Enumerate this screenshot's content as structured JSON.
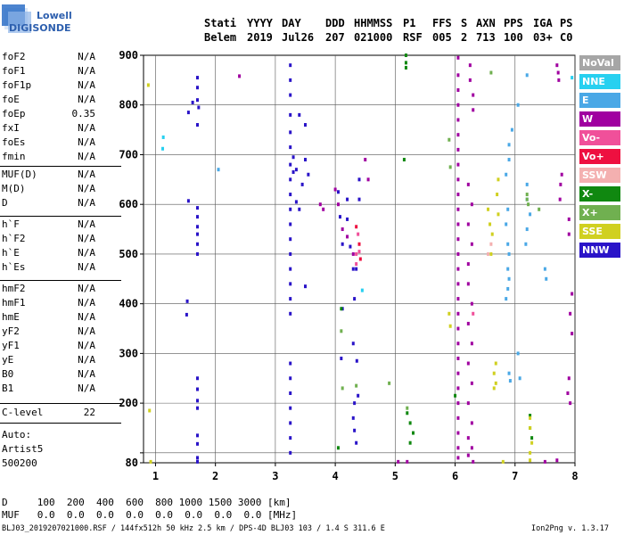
{
  "logo": {
    "line1": "Lowell",
    "line2": "DIGISONDE"
  },
  "header": {
    "columns": [
      "Stati",
      "YYYY",
      "DAY",
      "DDD",
      "HHMMSS",
      "P1",
      "FFS",
      "S",
      "AXN",
      "PPS",
      "IGA",
      "PS"
    ],
    "values": [
      "Belem",
      "2019",
      "Jul26",
      "207",
      "021000",
      "RSF",
      "005",
      "2",
      "713",
      "100",
      "03+",
      "C0"
    ]
  },
  "params": {
    "group1": [
      {
        "name": "foF2",
        "value": "N/A"
      },
      {
        "name": "foF1",
        "value": "N/A"
      },
      {
        "name": "foF1p",
        "value": "N/A"
      },
      {
        "name": "foE",
        "value": "N/A"
      },
      {
        "name": "foEp",
        "value": "0.35"
      },
      {
        "name": "fxI",
        "value": "N/A"
      },
      {
        "name": "foEs",
        "value": "N/A"
      },
      {
        "name": "fmin",
        "value": "N/A"
      }
    ],
    "group2": [
      {
        "name": "MUF(D)",
        "value": "N/A"
      },
      {
        "name": "M(D)",
        "value": "N/A"
      },
      {
        "name": "D",
        "value": "N/A"
      }
    ],
    "group3": [
      {
        "name": "h`F",
        "value": "N/A"
      },
      {
        "name": "h`F2",
        "value": "N/A"
      },
      {
        "name": "h`E",
        "value": "N/A"
      },
      {
        "name": "h`Es",
        "value": "N/A"
      }
    ],
    "group4": [
      {
        "name": "hmF2",
        "value": "N/A"
      },
      {
        "name": "hmF1",
        "value": "N/A"
      },
      {
        "name": "hmE",
        "value": "N/A"
      },
      {
        "name": "yF2",
        "value": "N/A"
      },
      {
        "name": "yF1",
        "value": "N/A"
      },
      {
        "name": "yE",
        "value": "N/A"
      },
      {
        "name": "B0",
        "value": "N/A"
      },
      {
        "name": "B1",
        "value": "N/A"
      }
    ],
    "clevel": {
      "name": "C-level",
      "value": "22"
    },
    "auto": {
      "l1": "Auto:",
      "l2": "Artist5",
      "l3": "500200"
    }
  },
  "legend": [
    {
      "label": "NoVal",
      "color": "#a6a6a6"
    },
    {
      "label": "NNE",
      "color": "#27d0f0"
    },
    {
      "label": "E",
      "color": "#4aa8e6"
    },
    {
      "label": "W",
      "color": "#a000a0"
    },
    {
      "label": "Vo-",
      "color": "#f0509a"
    },
    {
      "label": "Vo+",
      "color": "#ee1040"
    },
    {
      "label": "SSW",
      "color": "#f4b0b0"
    },
    {
      "label": "X-",
      "color": "#108810"
    },
    {
      "label": "X+",
      "color": "#70b050"
    },
    {
      "label": "SSE",
      "color": "#d0d020"
    },
    {
      "label": "NNW",
      "color": "#2a14c8"
    }
  ],
  "bottom": {
    "d_row": "D     100  200  400  600  800 1000 1500 3000 [km]",
    "muf_row": "MUF   0.0  0.0  0.0  0.0  0.0  0.0  0.0  0.0 [MHz]",
    "footer_left": "BLJ03_2019207021000.RSF / 144fx512h 50 kHz 2.5 km / DPS-4D BLJ03 103 / 1.4 S 311.6 E",
    "footer_right": "Ion2Png v. 1.3.17"
  },
  "chart_data": {
    "type": "scatter",
    "title": "",
    "xlabel": "",
    "ylabel": "",
    "xlim": [
      0.8,
      8.0
    ],
    "ylim": [
      80,
      900
    ],
    "x_ticks": [
      1,
      2,
      3,
      4,
      5,
      6,
      7,
      8
    ],
    "y_ticks": [
      80,
      100,
      200,
      300,
      400,
      500,
      600,
      700,
      800,
      900
    ],
    "y_tick_labels": [
      "80",
      "",
      "200",
      "300",
      "400",
      "500",
      "600",
      "700",
      "800",
      "900"
    ],
    "grid": true,
    "legend_position": "right",
    "series": [
      {
        "name": "NNW",
        "color": "#2a14c8",
        "points": [
          [
            1.7,
            835
          ],
          [
            1.7,
            855
          ],
          [
            1.72,
            795
          ],
          [
            1.7,
            810
          ],
          [
            1.7,
            760
          ],
          [
            1.55,
            785
          ],
          [
            1.62,
            805
          ],
          [
            1.55,
            607
          ],
          [
            1.7,
            593
          ],
          [
            1.7,
            575
          ],
          [
            1.7,
            555
          ],
          [
            1.7,
            540
          ],
          [
            1.7,
            520
          ],
          [
            1.7,
            500
          ],
          [
            1.53,
            405
          ],
          [
            1.52,
            378
          ],
          [
            1.7,
            250
          ],
          [
            1.7,
            228
          ],
          [
            1.7,
            205
          ],
          [
            1.7,
            190
          ],
          [
            1.7,
            135
          ],
          [
            1.7,
            118
          ],
          [
            1.7,
            90
          ],
          [
            1.7,
            82
          ],
          [
            3.25,
            880
          ],
          [
            3.25,
            850
          ],
          [
            3.25,
            820
          ],
          [
            3.25,
            780
          ],
          [
            3.25,
            745
          ],
          [
            3.25,
            715
          ],
          [
            3.25,
            680
          ],
          [
            3.25,
            650
          ],
          [
            3.25,
            620
          ],
          [
            3.25,
            590
          ],
          [
            3.25,
            560
          ],
          [
            3.25,
            530
          ],
          [
            3.25,
            500
          ],
          [
            3.25,
            470
          ],
          [
            3.25,
            440
          ],
          [
            3.25,
            410
          ],
          [
            3.25,
            380
          ],
          [
            3.25,
            280
          ],
          [
            3.25,
            250
          ],
          [
            3.25,
            220
          ],
          [
            3.25,
            190
          ],
          [
            3.25,
            160
          ],
          [
            3.25,
            130
          ],
          [
            3.25,
            100
          ],
          [
            3.4,
            780
          ],
          [
            3.5,
            760
          ],
          [
            3.5,
            690
          ],
          [
            3.55,
            660
          ],
          [
            3.5,
            435
          ],
          [
            3.45,
            640
          ],
          [
            3.35,
            670
          ],
          [
            3.3,
            695
          ],
          [
            3.3,
            665
          ],
          [
            3.35,
            605
          ],
          [
            3.4,
            590
          ],
          [
            4.1,
            290
          ],
          [
            4.12,
            390
          ],
          [
            4.2,
            610
          ],
          [
            4.2,
            570
          ],
          [
            4.25,
            515
          ],
          [
            4.32,
            410
          ],
          [
            4.3,
            470
          ],
          [
            4.35,
            470
          ],
          [
            4.4,
            650
          ],
          [
            4.4,
            610
          ],
          [
            4.3,
            320
          ],
          [
            4.32,
            200
          ],
          [
            4.35,
            120
          ],
          [
            4.3,
            170
          ],
          [
            4.32,
            145
          ],
          [
            4.05,
            625
          ],
          [
            4.08,
            575
          ],
          [
            4.12,
            520
          ],
          [
            4.38,
            215
          ],
          [
            4.36,
            285
          ]
        ]
      },
      {
        "name": "W",
        "color": "#a000a0",
        "points": [
          [
            2.4,
            858
          ],
          [
            6.05,
            895
          ],
          [
            6.05,
            860
          ],
          [
            6.05,
            830
          ],
          [
            6.05,
            800
          ],
          [
            6.05,
            770
          ],
          [
            6.05,
            740
          ],
          [
            6.05,
            710
          ],
          [
            6.05,
            680
          ],
          [
            6.05,
            650
          ],
          [
            6.05,
            620
          ],
          [
            6.05,
            590
          ],
          [
            6.05,
            560
          ],
          [
            6.05,
            530
          ],
          [
            6.05,
            500
          ],
          [
            6.05,
            470
          ],
          [
            6.05,
            440
          ],
          [
            6.05,
            410
          ],
          [
            6.05,
            380
          ],
          [
            6.05,
            350
          ],
          [
            6.05,
            320
          ],
          [
            6.05,
            290
          ],
          [
            6.05,
            260
          ],
          [
            6.05,
            230
          ],
          [
            6.05,
            200
          ],
          [
            6.05,
            170
          ],
          [
            6.05,
            140
          ],
          [
            6.05,
            110
          ],
          [
            6.05,
            90
          ],
          [
            6.25,
            880
          ],
          [
            6.25,
            850
          ],
          [
            6.3,
            820
          ],
          [
            6.3,
            790
          ],
          [
            6.22,
            640
          ],
          [
            6.28,
            600
          ],
          [
            6.22,
            560
          ],
          [
            6.28,
            520
          ],
          [
            6.22,
            480
          ],
          [
            6.22,
            440
          ],
          [
            6.28,
            400
          ],
          [
            6.22,
            360
          ],
          [
            6.28,
            320
          ],
          [
            6.22,
            280
          ],
          [
            6.28,
            240
          ],
          [
            6.22,
            200
          ],
          [
            6.28,
            160
          ],
          [
            6.22,
            130
          ],
          [
            6.28,
            110
          ],
          [
            6.22,
            95
          ],
          [
            6.3,
            82
          ],
          [
            7.7,
            880
          ],
          [
            7.72,
            865
          ],
          [
            7.73,
            850
          ],
          [
            7.78,
            660
          ],
          [
            7.76,
            640
          ],
          [
            7.75,
            610
          ],
          [
            7.9,
            570
          ],
          [
            7.9,
            540
          ],
          [
            7.95,
            420
          ],
          [
            7.92,
            380
          ],
          [
            7.95,
            340
          ],
          [
            7.9,
            250
          ],
          [
            7.88,
            220
          ],
          [
            7.92,
            200
          ],
          [
            7.7,
            85
          ],
          [
            7.5,
            82
          ],
          [
            4.0,
            630
          ],
          [
            4.05,
            600
          ],
          [
            3.75,
            600
          ],
          [
            3.8,
            590
          ],
          [
            4.12,
            550
          ],
          [
            4.2,
            535
          ],
          [
            4.3,
            500
          ],
          [
            4.5,
            690
          ],
          [
            4.55,
            650
          ],
          [
            5.05,
            82
          ],
          [
            5.2,
            82
          ]
        ]
      },
      {
        "name": "E",
        "color": "#4aa8e6",
        "points": [
          [
            2.05,
            670
          ],
          [
            7.2,
            860
          ],
          [
            7.05,
            800
          ],
          [
            6.95,
            750
          ],
          [
            6.9,
            720
          ],
          [
            6.9,
            690
          ],
          [
            6.85,
            660
          ],
          [
            6.88,
            590
          ],
          [
            6.85,
            560
          ],
          [
            6.88,
            520
          ],
          [
            6.9,
            500
          ],
          [
            6.88,
            470
          ],
          [
            6.9,
            450
          ],
          [
            6.88,
            430
          ],
          [
            6.85,
            410
          ],
          [
            6.9,
            260
          ],
          [
            7.2,
            640
          ],
          [
            7.2,
            610
          ],
          [
            7.25,
            580
          ],
          [
            7.2,
            550
          ],
          [
            7.18,
            520
          ],
          [
            7.5,
            470
          ],
          [
            7.52,
            450
          ],
          [
            7.05,
            300
          ],
          [
            7.08,
            250
          ],
          [
            6.92,
            245
          ]
        ]
      },
      {
        "name": "NNE",
        "color": "#27d0f0",
        "points": [
          [
            1.13,
            735
          ],
          [
            1.12,
            712
          ],
          [
            4.45,
            427
          ],
          [
            7.95,
            855
          ]
        ]
      },
      {
        "name": "Vo-",
        "color": "#f0509a",
        "points": [
          [
            4.35,
            480
          ],
          [
            4.4,
            505
          ],
          [
            4.35,
            500
          ],
          [
            6.3,
            380
          ],
          [
            4.38,
            540
          ]
        ]
      },
      {
        "name": "Vo+",
        "color": "#ee1040",
        "points": [
          [
            4.35,
            555
          ],
          [
            4.4,
            520
          ],
          [
            4.42,
            490
          ]
        ]
      },
      {
        "name": "X-",
        "color": "#108810",
        "points": [
          [
            5.18,
            900
          ],
          [
            5.18,
            885
          ],
          [
            5.18,
            875
          ],
          [
            5.15,
            690
          ],
          [
            5.2,
            180
          ],
          [
            5.25,
            160
          ],
          [
            5.3,
            140
          ],
          [
            5.25,
            120
          ],
          [
            6.0,
            215
          ],
          [
            7.25,
            175
          ],
          [
            7.25,
            150
          ],
          [
            7.28,
            130
          ],
          [
            4.1,
            390
          ],
          [
            4.05,
            110
          ]
        ]
      },
      {
        "name": "X+",
        "color": "#70b050",
        "points": [
          [
            4.1,
            345
          ],
          [
            4.12,
            230
          ],
          [
            4.35,
            235
          ],
          [
            4.9,
            240
          ],
          [
            5.2,
            190
          ],
          [
            5.9,
            730
          ],
          [
            5.92,
            675
          ],
          [
            6.6,
            865
          ],
          [
            7.2,
            620
          ],
          [
            7.22,
            600
          ],
          [
            7.2,
            610
          ],
          [
            7.4,
            590
          ]
        ]
      },
      {
        "name": "SSE",
        "color": "#d0d020",
        "points": [
          [
            0.88,
            840
          ],
          [
            0.9,
            185
          ],
          [
            0.92,
            82
          ],
          [
            5.9,
            380
          ],
          [
            5.92,
            355
          ],
          [
            6.55,
            590
          ],
          [
            6.58,
            560
          ],
          [
            6.62,
            540
          ],
          [
            6.6,
            500
          ],
          [
            6.68,
            280
          ],
          [
            6.65,
            260
          ],
          [
            6.68,
            240
          ],
          [
            6.65,
            230
          ],
          [
            6.72,
            650
          ],
          [
            6.7,
            620
          ],
          [
            6.72,
            580
          ],
          [
            7.25,
            170
          ],
          [
            7.25,
            150
          ],
          [
            7.28,
            120
          ],
          [
            7.25,
            100
          ],
          [
            7.25,
            85
          ],
          [
            6.8,
            82
          ]
        ]
      },
      {
        "name": "SSW",
        "color": "#f4b0b0",
        "points": [
          [
            6.55,
            500
          ],
          [
            6.6,
            520
          ]
        ]
      }
    ]
  }
}
